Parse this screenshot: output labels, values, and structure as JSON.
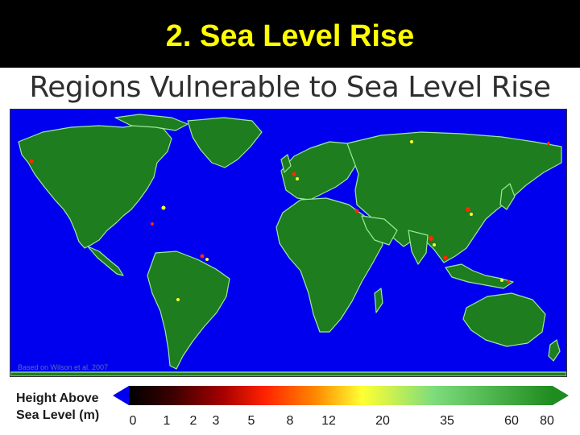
{
  "slide": {
    "title": "2. Sea Level Rise"
  },
  "map": {
    "heading": "Regions Vulnerable to Sea Level Rise",
    "source_note": "Based on Wilson et al. 2007",
    "colors": {
      "ocean": "#0000ee",
      "land": "#1e7d1e",
      "lowland": "#ff2a00",
      "mid": "#ffff33",
      "highland": "#7dd87d"
    },
    "regions": [
      "North America",
      "Greenland",
      "South America",
      "Europe",
      "Africa",
      "Asia",
      "Australia"
    ]
  },
  "legend": {
    "title_line1": "Height Above",
    "title_line2": "Sea Level (m)",
    "colors": [
      "#000000",
      "#3a0000",
      "#a40000",
      "#ff2200",
      "#ff8800",
      "#ffff33",
      "#7ddc7d",
      "#1e8c1e"
    ],
    "ticks": [
      "0",
      "1",
      "2",
      "3",
      "5",
      "8",
      "12",
      "20",
      "35",
      "60",
      "80"
    ]
  }
}
